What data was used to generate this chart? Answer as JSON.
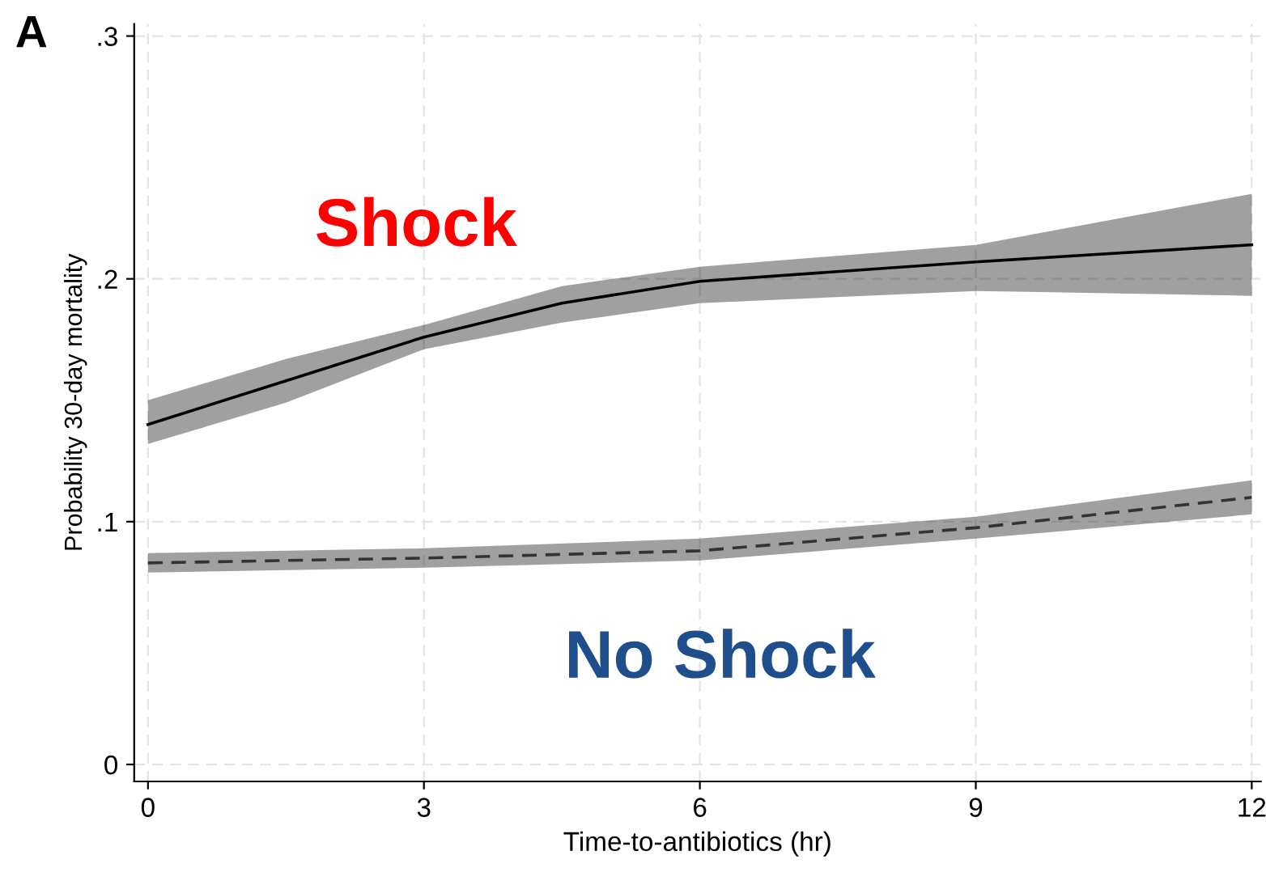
{
  "chart_data": {
    "type": "line",
    "xlabel": "Time-to-antibiotics (hr)",
    "ylabel": "Probability 30-day mortality",
    "series": [
      {
        "name": "Shock",
        "color": "#000000",
        "line_style": "solid",
        "x": [
          0,
          1.5,
          3,
          4.5,
          6,
          9,
          12
        ],
        "values": [
          0.14,
          0.158,
          0.176,
          0.19,
          0.199,
          0.207,
          0.214
        ],
        "lower": [
          0.132,
          0.149,
          0.171,
          0.182,
          0.19,
          0.195,
          0.193
        ],
        "upper": [
          0.15,
          0.167,
          0.181,
          0.197,
          0.205,
          0.214,
          0.235
        ]
      },
      {
        "name": "No Shock",
        "color": "#333333",
        "line_style": "dashed",
        "x": [
          0,
          3,
          6,
          9,
          12
        ],
        "values": [
          0.083,
          0.085,
          0.088,
          0.0975,
          0.11
        ],
        "lower": [
          0.079,
          0.081,
          0.084,
          0.093,
          0.103
        ],
        "upper": [
          0.087,
          0.089,
          0.093,
          0.102,
          0.117
        ]
      }
    ],
    "annotations": [
      "A"
    ],
    "xlim": [
      -0.15,
      12.1
    ],
    "ylim": [
      -0.007,
      0.305
    ],
    "xticks": [
      0,
      3,
      6,
      9,
      12
    ],
    "yticks": [
      {
        "value": 0,
        "label": "0"
      },
      {
        "value": 0.1,
        "label": ".1"
      },
      {
        "value": 0.2,
        "label": ".2"
      },
      {
        "value": 0.3,
        "label": ".3"
      }
    ],
    "grid": true
  }
}
